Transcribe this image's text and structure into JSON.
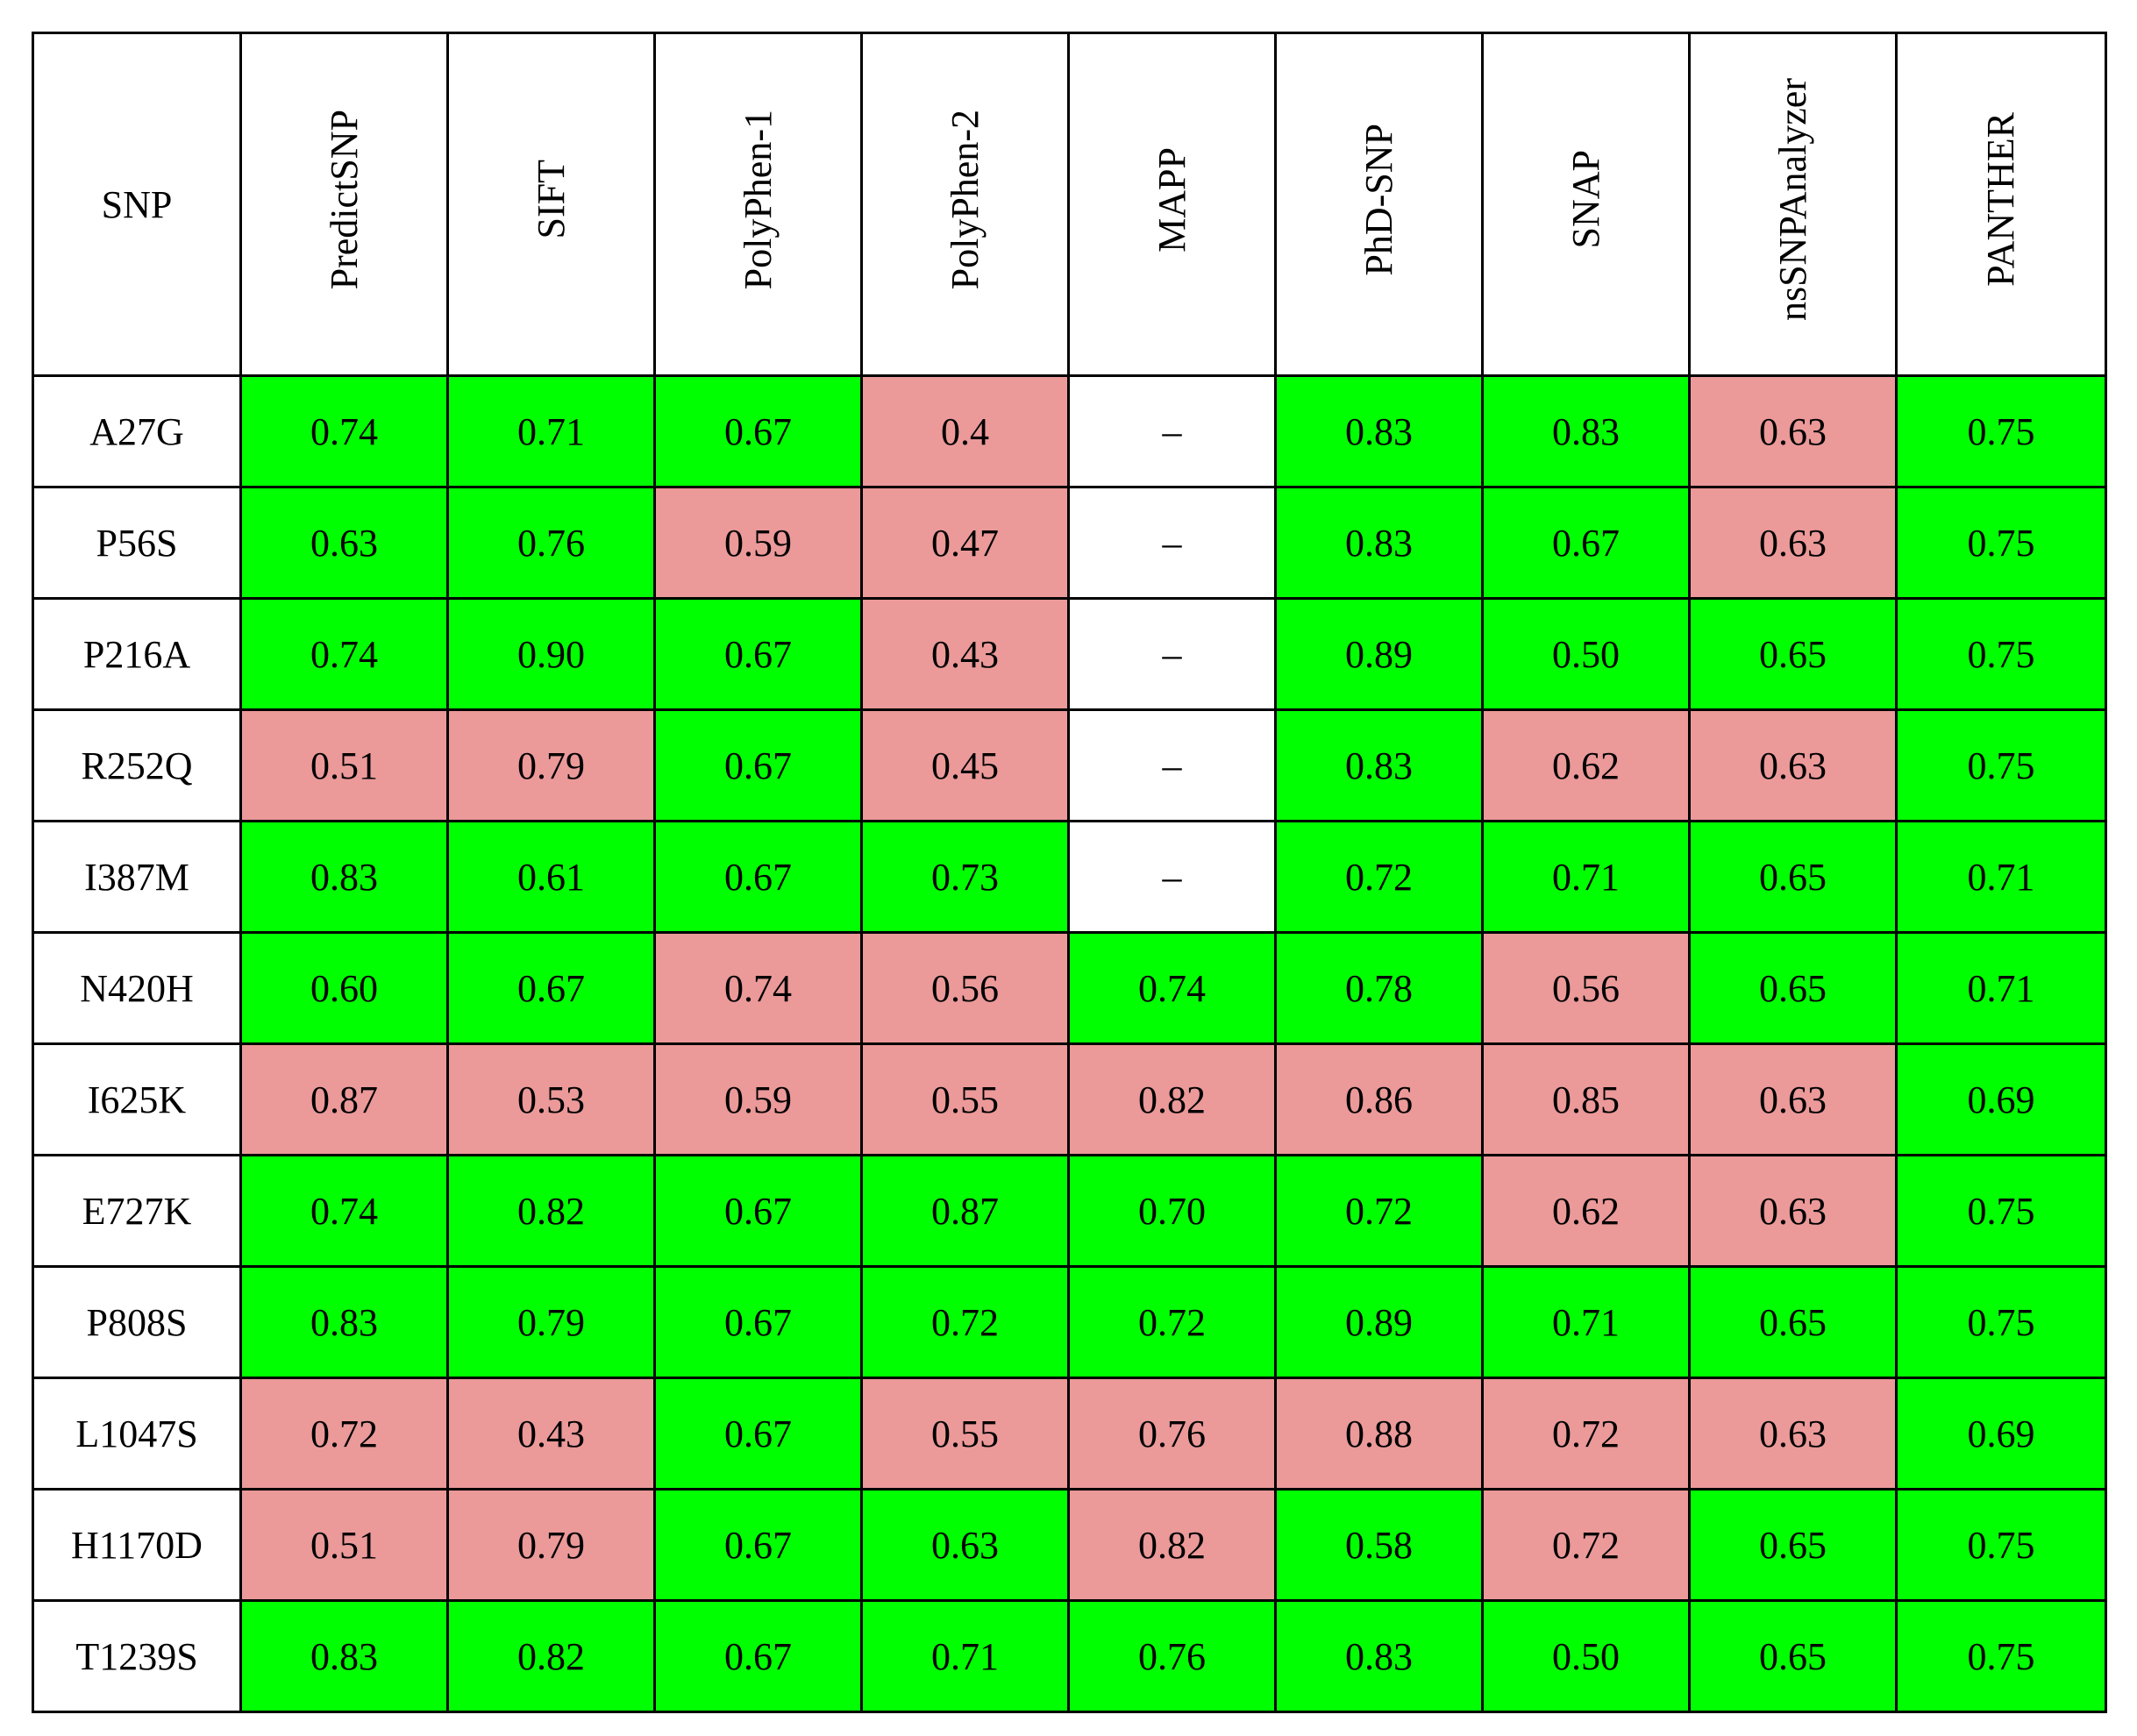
{
  "colors": {
    "neutral": "#00ff00",
    "deleterious": "#eb9999",
    "not_available": "#ffffff"
  },
  "table": {
    "header_snp": "SNP",
    "tools": [
      "PredictSNP",
      "SIFT",
      "PolyPhen-1",
      "PolyPhen-2",
      "MAPP",
      "PhD-SNP",
      "SNAP",
      "nsSNPAnalyzer",
      "PANTHER"
    ],
    "rows": [
      {
        "snp": "A27G",
        "values": [
          "0.74",
          "0.71",
          "0.67",
          "0.4",
          "–",
          "0.83",
          "0.83",
          "0.63",
          "0.75"
        ],
        "classes": [
          "ok",
          "ok",
          "ok",
          "bad",
          "na",
          "ok",
          "ok",
          "bad",
          "ok"
        ]
      },
      {
        "snp": "P56S",
        "values": [
          "0.63",
          "0.76",
          "0.59",
          "0.47",
          "–",
          "0.83",
          "0.67",
          "0.63",
          "0.75"
        ],
        "classes": [
          "ok",
          "ok",
          "bad",
          "bad",
          "na",
          "ok",
          "ok",
          "bad",
          "ok"
        ]
      },
      {
        "snp": "P216A",
        "values": [
          "0.74",
          "0.90",
          "0.67",
          "0.43",
          "–",
          "0.89",
          "0.50",
          "0.65",
          "0.75"
        ],
        "classes": [
          "ok",
          "ok",
          "ok",
          "bad",
          "na",
          "ok",
          "ok",
          "ok",
          "ok"
        ]
      },
      {
        "snp": "R252Q",
        "values": [
          "0.51",
          "0.79",
          "0.67",
          "0.45",
          "–",
          "0.83",
          "0.62",
          "0.63",
          "0.75"
        ],
        "classes": [
          "bad",
          "bad",
          "ok",
          "bad",
          "na",
          "ok",
          "bad",
          "bad",
          "ok"
        ]
      },
      {
        "snp": "I387M",
        "values": [
          "0.83",
          "0.61",
          "0.67",
          "0.73",
          "–",
          "0.72",
          "0.71",
          "0.65",
          "0.71"
        ],
        "classes": [
          "ok",
          "ok",
          "ok",
          "ok",
          "na",
          "ok",
          "ok",
          "ok",
          "ok"
        ]
      },
      {
        "snp": "N420H",
        "values": [
          "0.60",
          "0.67",
          "0.74",
          "0.56",
          "0.74",
          "0.78",
          "0.56",
          "0.65",
          "0.71"
        ],
        "classes": [
          "ok",
          "ok",
          "bad",
          "bad",
          "ok",
          "ok",
          "bad",
          "ok",
          "ok"
        ]
      },
      {
        "snp": "I625K",
        "values": [
          "0.87",
          "0.53",
          "0.59",
          "0.55",
          "0.82",
          "0.86",
          "0.85",
          "0.63",
          "0.69"
        ],
        "classes": [
          "bad",
          "bad",
          "bad",
          "bad",
          "bad",
          "bad",
          "bad",
          "bad",
          "ok"
        ]
      },
      {
        "snp": "E727K",
        "values": [
          "0.74",
          "0.82",
          "0.67",
          "0.87",
          "0.70",
          "0.72",
          "0.62",
          "0.63",
          "0.75"
        ],
        "classes": [
          "ok",
          "ok",
          "ok",
          "ok",
          "ok",
          "ok",
          "bad",
          "bad",
          "ok"
        ]
      },
      {
        "snp": "P808S",
        "values": [
          "0.83",
          "0.79",
          "0.67",
          "0.72",
          "0.72",
          "0.89",
          "0.71",
          "0.65",
          "0.75"
        ],
        "classes": [
          "ok",
          "ok",
          "ok",
          "ok",
          "ok",
          "ok",
          "ok",
          "ok",
          "ok"
        ]
      },
      {
        "snp": "L1047S",
        "values": [
          "0.72",
          "0.43",
          "0.67",
          "0.55",
          "0.76",
          "0.88",
          "0.72",
          "0.63",
          "0.69"
        ],
        "classes": [
          "bad",
          "bad",
          "ok",
          "bad",
          "bad",
          "bad",
          "bad",
          "bad",
          "ok"
        ]
      },
      {
        "snp": "H1170D",
        "values": [
          "0.51",
          "0.79",
          "0.67",
          "0.63",
          "0.82",
          "0.58",
          "0.72",
          "0.65",
          "0.75"
        ],
        "classes": [
          "bad",
          "bad",
          "ok",
          "ok",
          "bad",
          "ok",
          "bad",
          "ok",
          "ok"
        ]
      },
      {
        "snp": "T1239S",
        "values": [
          "0.83",
          "0.82",
          "0.67",
          "0.71",
          "0.76",
          "0.83",
          "0.50",
          "0.65",
          "0.75"
        ],
        "classes": [
          "ok",
          "ok",
          "ok",
          "ok",
          "ok",
          "ok",
          "ok",
          "ok",
          "ok"
        ]
      }
    ]
  }
}
